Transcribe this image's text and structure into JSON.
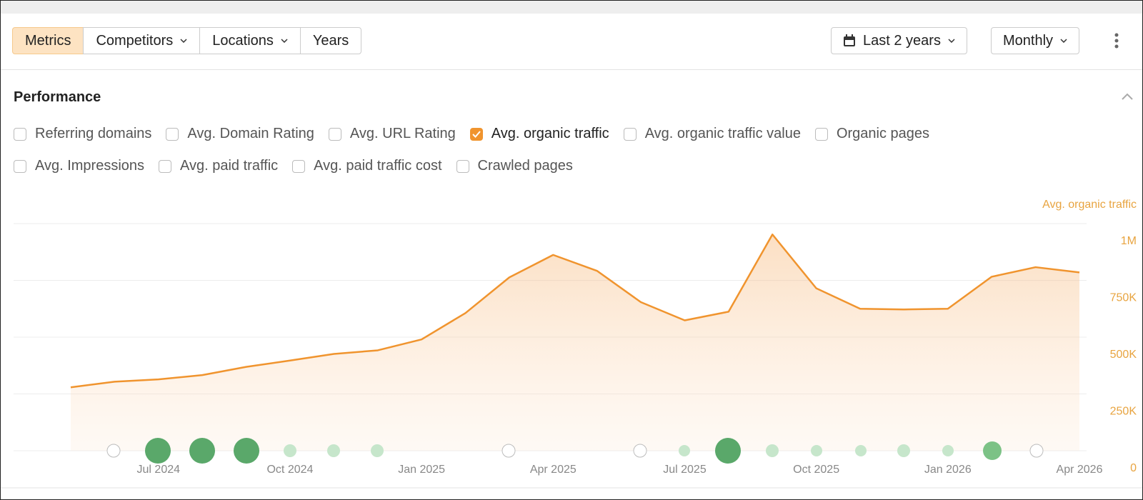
{
  "toolbar": {
    "tabs": [
      "Metrics",
      "Competitors",
      "Locations",
      "Years"
    ],
    "date_range": "Last 2 years",
    "interval": "Monthly"
  },
  "section": {
    "title": "Performance",
    "metrics": [
      [
        {
          "label": "Referring domains",
          "checked": false
        },
        {
          "label": "Avg. Domain Rating",
          "checked": false
        },
        {
          "label": "Avg. URL Rating",
          "checked": false
        },
        {
          "label": "Avg. organic traffic",
          "checked": true
        },
        {
          "label": "Avg. organic traffic value",
          "checked": false
        },
        {
          "label": "Organic pages",
          "checked": false
        }
      ],
      [
        {
          "label": "Avg. Impressions",
          "checked": false
        },
        {
          "label": "Avg. paid traffic",
          "checked": false
        },
        {
          "label": "Avg. paid traffic cost",
          "checked": false
        },
        {
          "label": "Crawled pages",
          "checked": false
        }
      ]
    ]
  },
  "chart_data": {
    "type": "area",
    "y_label": "Avg. organic traffic",
    "color": "#f0942e",
    "grid": true,
    "categories": [
      null,
      null,
      "Jul 2024",
      null,
      null,
      "Oct 2024",
      null,
      null,
      "Jan 2025",
      null,
      null,
      "Apr 2025",
      null,
      null,
      "Jul 2025",
      null,
      null,
      "Oct 2025",
      null,
      null,
      "Jan 2026",
      null,
      null,
      "Apr 2026"
    ],
    "values": [
      279000,
      304000,
      314000,
      333000,
      369000,
      397000,
      426000,
      442000,
      490000,
      606000,
      763000,
      862000,
      792000,
      654000,
      574000,
      612000,
      952000,
      715000,
      625000,
      622000,
      625000,
      766000,
      808000,
      785000
    ],
    "ylim": [
      0,
      1000000
    ],
    "yticks": [
      0,
      {
        "value": 250000,
        "label": "250K"
      },
      {
        "value": 500000,
        "label": "500K"
      },
      {
        "value": 750000,
        "label": "750K"
      },
      {
        "value": 1000000,
        "label": "1M"
      }
    ]
  }
}
